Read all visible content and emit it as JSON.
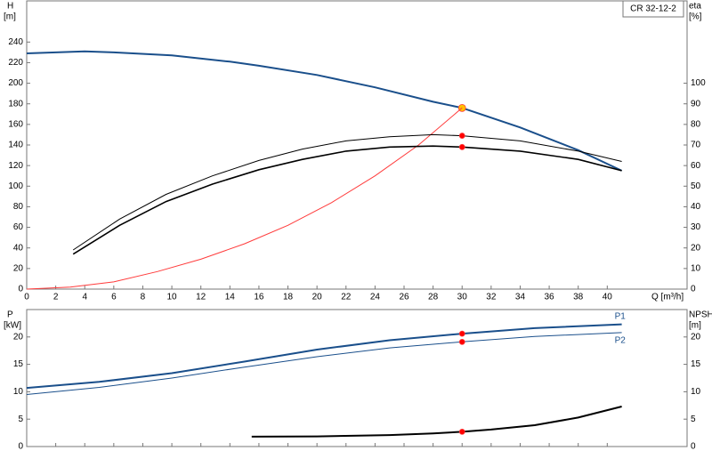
{
  "chart_data": [
    {
      "type": "line",
      "title": "CR 32-12-2",
      "ylabel": "H",
      "yunit": "[m]",
      "y2label": "eta",
      "y2unit": "[%]",
      "xlabel": "Q [m³/h]",
      "xlim": [
        0,
        45.5
      ],
      "xticks": [
        0,
        2,
        4,
        6,
        8,
        10,
        12,
        14,
        16,
        18,
        20,
        22,
        24,
        26,
        28,
        30,
        32,
        34,
        36,
        38,
        40
      ],
      "ylim": [
        0,
        280
      ],
      "yticks": [
        0,
        20,
        40,
        60,
        80,
        100,
        120,
        140,
        160,
        180,
        200,
        220,
        240
      ],
      "y2lim": [
        0,
        140
      ],
      "y2ticks": [
        0,
        10,
        20,
        30,
        40,
        50,
        60,
        70,
        80,
        90,
        100
      ],
      "duty_point": 30,
      "series": [
        {
          "color": "#1a4f8b",
          "width": 2,
          "marker_color": "#ffc000",
          "axis": "y",
          "x": [
            0,
            4,
            6,
            10,
            14,
            16,
            20,
            24,
            28,
            30,
            34,
            38,
            41
          ],
          "values": [
            229,
            231,
            230,
            227,
            221,
            217,
            208,
            196,
            182,
            176,
            157,
            135,
            115
          ]
        },
        {
          "color": "#ff3b3b",
          "width": 1,
          "axis": "y2",
          "x": [
            0,
            3,
            6,
            9,
            12,
            15,
            18,
            21,
            24,
            27,
            30
          ],
          "values": [
            0,
            1,
            3.5,
            8.5,
            14.5,
            22,
            31,
            42,
            55,
            70,
            88
          ]
        },
        {
          "color": "#000000",
          "width": 1,
          "marker_color": "#ff0000",
          "axis": "y2",
          "x": [
            3.2,
            6.4,
            9.6,
            12.8,
            16,
            19,
            22,
            25,
            28,
            30,
            34,
            38,
            41
          ],
          "values": [
            19,
            34,
            46,
            55,
            62.5,
            68,
            72,
            74,
            75,
            74.5,
            72,
            67,
            62
          ]
        },
        {
          "color": "#000000",
          "width": 1.6,
          "marker_color": "#ff0000",
          "axis": "y2",
          "x": [
            3.2,
            6.4,
            9.6,
            12.8,
            16,
            19,
            22,
            25,
            28,
            30,
            34,
            38,
            41
          ],
          "values": [
            17,
            31,
            42.5,
            51,
            58,
            63,
            67,
            69,
            69.5,
            69,
            67,
            63,
            57.5
          ]
        }
      ]
    },
    {
      "type": "line",
      "ylabel": "P",
      "yunit": "[kW]",
      "y2label": "NPSH",
      "y2unit": "[m]",
      "xlim": [
        0,
        45.5
      ],
      "xticks": [
        0,
        2,
        4,
        6,
        8,
        10,
        12,
        14,
        16,
        18,
        20,
        22,
        24,
        26,
        28,
        30,
        32,
        34,
        36,
        38,
        40
      ],
      "ylim": [
        0,
        25
      ],
      "yticks": [
        0,
        5,
        10,
        15,
        20
      ],
      "y2lim": [
        0,
        25
      ],
      "y2ticks": [
        0,
        5,
        10,
        15,
        20
      ],
      "duty_point": 30,
      "series": [
        {
          "name": "P1",
          "color": "#1a4f8b",
          "width": 2,
          "marker_color": "#ff0000",
          "axis": "y",
          "x": [
            0,
            5,
            10,
            15,
            20,
            25,
            30,
            35,
            41
          ],
          "values": [
            10.7,
            11.8,
            13.4,
            15.5,
            17.7,
            19.4,
            20.6,
            21.6,
            22.3
          ]
        },
        {
          "name": "P2",
          "color": "#1a4f8b",
          "width": 1,
          "marker_color": "#ff0000",
          "axis": "y",
          "x": [
            0,
            5,
            10,
            15,
            20,
            25,
            30,
            35,
            41
          ],
          "values": [
            9.5,
            10.8,
            12.5,
            14.5,
            16.4,
            18,
            19.1,
            20.1,
            20.8
          ]
        },
        {
          "color": "#000000",
          "width": 2,
          "marker_color": "#ff0000",
          "axis": "y2",
          "x": [
            15.5,
            20,
            25,
            28,
            30,
            32,
            35,
            38,
            41
          ],
          "values": [
            1.8,
            1.85,
            2.1,
            2.4,
            2.7,
            3.1,
            3.9,
            5.3,
            7.3
          ]
        }
      ]
    }
  ]
}
